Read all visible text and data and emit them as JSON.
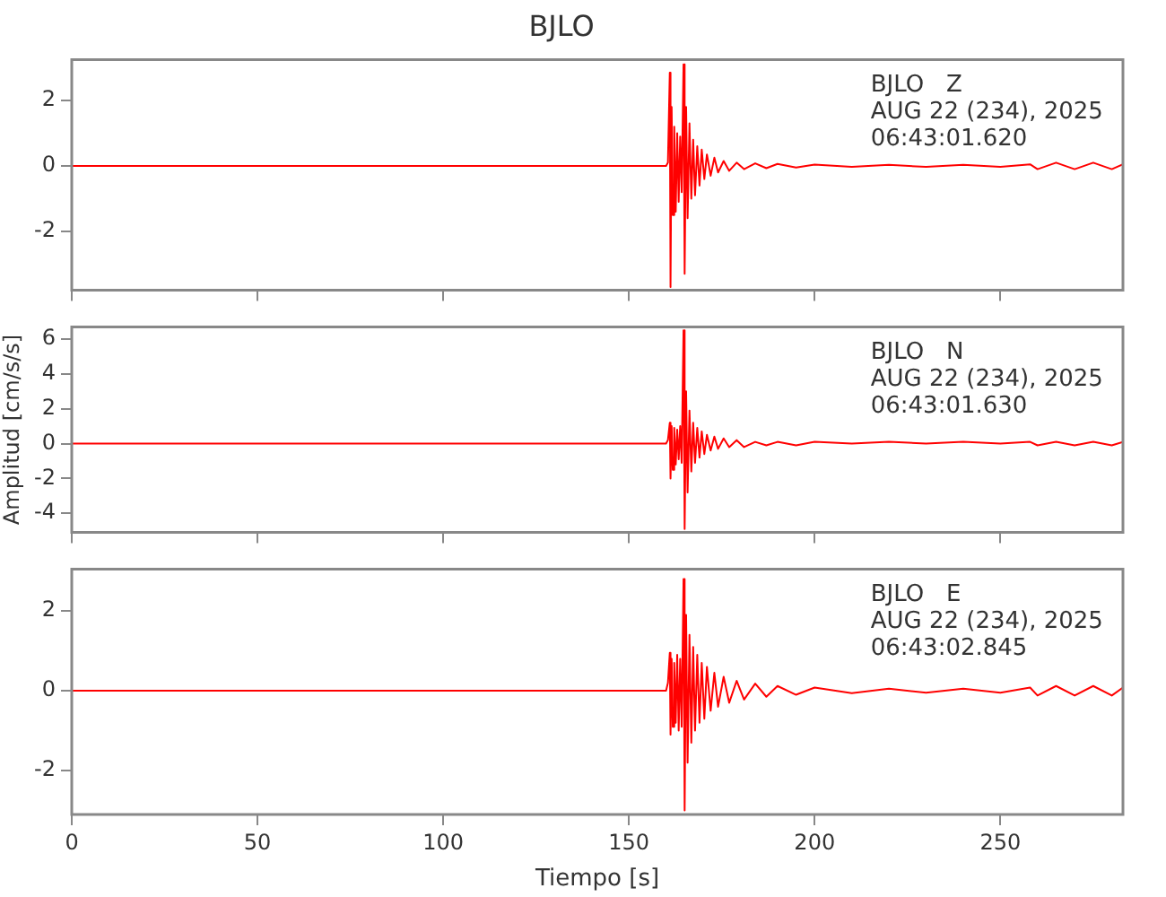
{
  "chart_data": [
    {
      "type": "line",
      "title": "BJLO",
      "tick_labels": "y",
      "annotations": [
        "BJLO   Z",
        "AUG 22 (234), 2025",
        "06:43:01.620"
      ],
      "xlim": [
        0,
        283
      ],
      "xticks": [
        0,
        50,
        100,
        150,
        200,
        250
      ],
      "ylim": [
        -3.8,
        3.25
      ],
      "yticks": [
        -2,
        0,
        2
      ],
      "grid": false,
      "legend": false,
      "marker": "none",
      "x": [
        0,
        20,
        40,
        60,
        80,
        100,
        120,
        140,
        160,
        160.5,
        161,
        161.2,
        161.5,
        161.8,
        162.2,
        162.6,
        163,
        163.4,
        163.8,
        164.2,
        164.7,
        165,
        165.4,
        165.8,
        166.3,
        166.8,
        167.3,
        167.8,
        168.4,
        169,
        169.6,
        170.3,
        171,
        172,
        173,
        174,
        175.5,
        177,
        179,
        181,
        184,
        187,
        190,
        195,
        200,
        210,
        220,
        230,
        240,
        250,
        258,
        260,
        265,
        270,
        275,
        280,
        283
      ],
      "series": [
        {
          "color": "#ff0000",
          "values": [
            0,
            0,
            0,
            0,
            0,
            0,
            0,
            0,
            0,
            0.1,
            2.85,
            -3.7,
            1.8,
            -1.5,
            1.2,
            -1.4,
            1.0,
            -1.1,
            0.9,
            -0.8,
            3.1,
            -3.3,
            1.8,
            -1.6,
            1.3,
            -1.0,
            0.8,
            -0.9,
            0.6,
            -0.6,
            0.5,
            -0.4,
            0.35,
            -0.3,
            0.25,
            -0.2,
            0.15,
            -0.15,
            0.1,
            -0.1,
            0.08,
            -0.07,
            0.06,
            -0.05,
            0.04,
            -0.03,
            0.03,
            -0.03,
            0.03,
            -0.03,
            0.05,
            -0.1,
            0.1,
            -0.1,
            0.1,
            -0.1,
            0.05
          ]
        }
      ]
    },
    {
      "type": "line",
      "ylabel": "Amplitud [cm/s/s]",
      "tick_labels": "y",
      "annotations": [
        "BJLO   N",
        "AUG 22 (234), 2025",
        "06:43:01.630"
      ],
      "xlim": [
        0,
        283
      ],
      "xticks": [
        0,
        50,
        100,
        150,
        200,
        250
      ],
      "ylim": [
        -5.1,
        6.7
      ],
      "yticks": [
        -4,
        -2,
        0,
        2,
        4,
        6
      ],
      "grid": false,
      "legend": false,
      "marker": "none",
      "x": [
        0,
        20,
        40,
        60,
        80,
        100,
        120,
        140,
        160,
        160.5,
        161,
        161.2,
        161.5,
        161.8,
        162.2,
        162.6,
        163,
        163.4,
        163.8,
        164.2,
        164.7,
        165,
        165.4,
        165.8,
        166.3,
        166.8,
        167.3,
        167.8,
        168.4,
        169,
        169.6,
        170.3,
        171,
        172,
        173,
        174,
        175.5,
        177,
        179,
        181,
        184,
        187,
        190,
        195,
        200,
        210,
        220,
        230,
        240,
        250,
        258,
        260,
        265,
        270,
        275,
        280,
        283
      ],
      "series": [
        {
          "color": "#ff0000",
          "values": [
            0,
            0,
            0,
            0,
            0,
            0,
            0,
            0,
            0,
            0.2,
            1.2,
            -2.0,
            1.0,
            -1.5,
            0.9,
            -1.2,
            0.8,
            -0.9,
            1.0,
            -1.1,
            6.5,
            -4.9,
            3.0,
            -2.8,
            1.9,
            -1.6,
            1.2,
            -1.1,
            0.9,
            -0.8,
            0.7,
            -0.6,
            0.5,
            -0.4,
            0.4,
            -0.3,
            0.3,
            -0.2,
            0.2,
            -0.2,
            0.1,
            -0.1,
            0.1,
            -0.1,
            0.1,
            0,
            0.1,
            0,
            0.1,
            0,
            0.1,
            -0.1,
            0.1,
            -0.1,
            0.1,
            -0.1,
            0.1
          ]
        }
      ]
    },
    {
      "type": "line",
      "xlabel": "Tiempo [s]",
      "annotations": [
        "BJLO   E",
        "AUG 22 (234), 2025",
        "06:43:02.845"
      ],
      "xlim": [
        0,
        283
      ],
      "xticks": [
        0,
        50,
        100,
        150,
        200,
        250
      ],
      "ylim": [
        -3.1,
        3.05
      ],
      "yticks": [
        -2,
        0,
        2
      ],
      "grid": false,
      "legend": false,
      "marker": "none",
      "x": [
        0,
        20,
        40,
        60,
        80,
        100,
        120,
        140,
        160,
        160.5,
        161,
        161.2,
        161.5,
        161.8,
        162.2,
        162.6,
        163,
        163.4,
        163.8,
        164.2,
        164.7,
        165,
        165.4,
        165.8,
        166.3,
        166.8,
        167.3,
        167.8,
        168.4,
        169,
        169.6,
        170.3,
        171,
        172,
        173,
        174,
        175.5,
        177,
        179,
        181,
        184,
        187,
        190,
        195,
        200,
        210,
        220,
        230,
        240,
        250,
        258,
        260,
        265,
        270,
        275,
        280,
        283
      ],
      "series": [
        {
          "color": "#ff0000",
          "values": [
            0,
            0,
            0,
            0,
            0,
            0,
            0,
            0,
            0,
            0.2,
            0.95,
            -1.1,
            0.8,
            -0.9,
            0.7,
            -0.8,
            0.9,
            -1.0,
            0.8,
            -0.9,
            2.8,
            -3.0,
            1.9,
            -1.8,
            1.4,
            -1.3,
            1.1,
            -1.0,
            0.9,
            -0.8,
            0.7,
            -0.7,
            0.6,
            -0.5,
            0.45,
            -0.4,
            0.35,
            -0.3,
            0.25,
            -0.22,
            0.18,
            -0.15,
            0.12,
            -0.1,
            0.08,
            -0.06,
            0.05,
            -0.05,
            0.05,
            -0.05,
            0.08,
            -0.12,
            0.12,
            -0.12,
            0.12,
            -0.12,
            0.08
          ]
        }
      ]
    }
  ]
}
